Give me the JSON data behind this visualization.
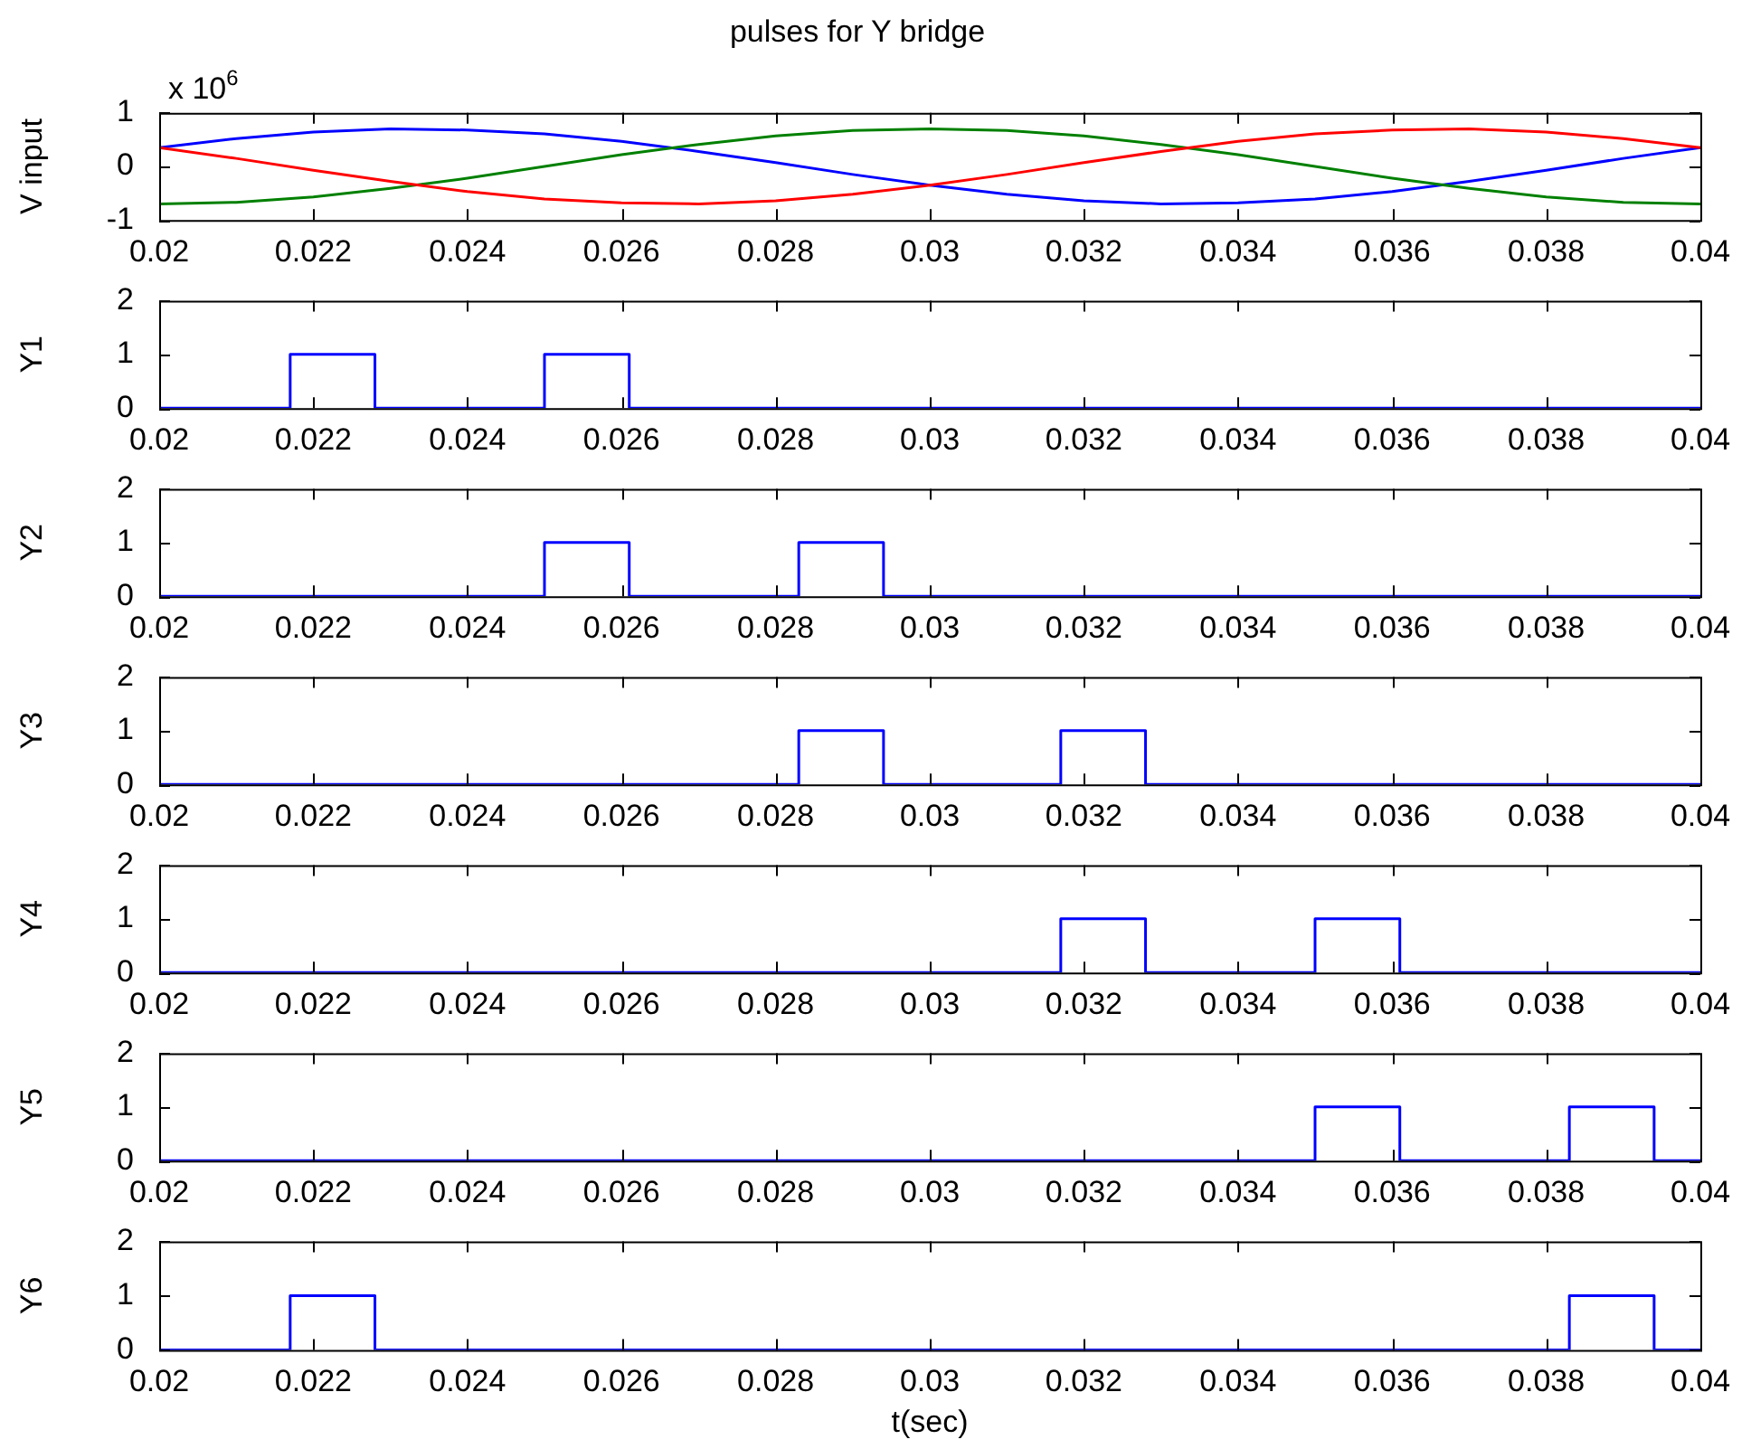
{
  "chart_data": [
    {
      "type": "line",
      "title": "pulses for Y bridge",
      "ylabel": "V input",
      "annotations": [
        "x 10$^{6}$"
      ],
      "xlim": [
        0.02,
        0.04
      ],
      "xticks": [
        0.02,
        0.022,
        0.024,
        0.026,
        0.028,
        0.03,
        0.032,
        0.034,
        0.036,
        0.038,
        0.04
      ],
      "ylim": [
        -1,
        1
      ],
      "yticks": [
        -1,
        0,
        1
      ],
      "grid": false,
      "legend": false,
      "x": [
        0.02,
        0.021,
        0.022,
        0.023,
        0.024,
        0.025,
        0.026,
        0.027,
        0.028,
        0.029,
        0.03,
        0.031,
        0.032,
        0.033,
        0.034,
        0.035,
        0.036,
        0.037,
        0.038,
        0.039,
        0.04
      ],
      "series": [
        {
          "color": "#ff0000",
          "values": [
            0.35,
            0.15,
            -0.07,
            -0.28,
            -0.47,
            -0.61,
            -0.68,
            -0.7,
            -0.64,
            -0.52,
            -0.35,
            -0.15,
            0.07,
            0.28,
            0.47,
            0.61,
            0.68,
            0.7,
            0.64,
            0.52,
            0.35
          ]
        },
        {
          "color": "#008000",
          "values": [
            -0.7,
            -0.67,
            -0.57,
            -0.41,
            -0.22,
            0,
            0.22,
            0.41,
            0.57,
            0.67,
            0.7,
            0.67,
            0.57,
            0.41,
            0.22,
            0,
            -0.22,
            -0.41,
            -0.57,
            -0.67,
            -0.7
          ]
        },
        {
          "color": "#0000ff",
          "values": [
            0.35,
            0.52,
            0.64,
            0.7,
            0.68,
            0.61,
            0.47,
            0.28,
            0.07,
            -0.15,
            -0.35,
            -0.52,
            -0.64,
            -0.7,
            -0.68,
            -0.61,
            -0.47,
            -0.28,
            -0.07,
            0.15,
            0.35
          ]
        }
      ]
    },
    {
      "type": "line",
      "ylabel": "Y1",
      "xlim": [
        0.02,
        0.04
      ],
      "xticks": [
        0.02,
        0.022,
        0.024,
        0.026,
        0.028,
        0.03,
        0.032,
        0.034,
        0.036,
        0.038,
        0.04
      ],
      "ylim": [
        0,
        2
      ],
      "yticks": [
        0,
        1,
        2
      ],
      "grid": false,
      "legend": false,
      "series": [
        {
          "color": "#0000ff",
          "x": [
            0.02,
            0.0217,
            0.0217,
            0.0228,
            0.0228,
            0.025,
            0.025,
            0.0261,
            0.0261,
            0.04
          ],
          "values": [
            0,
            0,
            1,
            1,
            0,
            0,
            1,
            1,
            0,
            0
          ]
        }
      ]
    },
    {
      "type": "line",
      "ylabel": "Y2",
      "xlim": [
        0.02,
        0.04
      ],
      "xticks": [
        0.02,
        0.022,
        0.024,
        0.026,
        0.028,
        0.03,
        0.032,
        0.034,
        0.036,
        0.038,
        0.04
      ],
      "ylim": [
        0,
        2
      ],
      "yticks": [
        0,
        1,
        2
      ],
      "grid": false,
      "legend": false,
      "series": [
        {
          "color": "#0000ff",
          "x": [
            0.02,
            0.025,
            0.025,
            0.0261,
            0.0261,
            0.0283,
            0.0283,
            0.0294,
            0.0294,
            0.04
          ],
          "values": [
            0,
            0,
            1,
            1,
            0,
            0,
            1,
            1,
            0,
            0
          ]
        }
      ]
    },
    {
      "type": "line",
      "ylabel": "Y3",
      "xlim": [
        0.02,
        0.04
      ],
      "xticks": [
        0.02,
        0.022,
        0.024,
        0.026,
        0.028,
        0.03,
        0.032,
        0.034,
        0.036,
        0.038,
        0.04
      ],
      "ylim": [
        0,
        2
      ],
      "yticks": [
        0,
        1,
        2
      ],
      "grid": false,
      "legend": false,
      "series": [
        {
          "color": "#0000ff",
          "x": [
            0.02,
            0.0283,
            0.0283,
            0.0294,
            0.0294,
            0.0317,
            0.0317,
            0.0328,
            0.0328,
            0.04
          ],
          "values": [
            0,
            0,
            1,
            1,
            0,
            0,
            1,
            1,
            0,
            0
          ]
        }
      ]
    },
    {
      "type": "line",
      "ylabel": "Y4",
      "xlim": [
        0.02,
        0.04
      ],
      "xticks": [
        0.02,
        0.022,
        0.024,
        0.026,
        0.028,
        0.03,
        0.032,
        0.034,
        0.036,
        0.038,
        0.04
      ],
      "ylim": [
        0,
        2
      ],
      "yticks": [
        0,
        1,
        2
      ],
      "grid": false,
      "legend": false,
      "series": [
        {
          "color": "#0000ff",
          "x": [
            0.02,
            0.0317,
            0.0317,
            0.0328,
            0.0328,
            0.035,
            0.035,
            0.0361,
            0.0361,
            0.04
          ],
          "values": [
            0,
            0,
            1,
            1,
            0,
            0,
            1,
            1,
            0,
            0
          ]
        }
      ]
    },
    {
      "type": "line",
      "ylabel": "Y5",
      "xlim": [
        0.02,
        0.04
      ],
      "xticks": [
        0.02,
        0.022,
        0.024,
        0.026,
        0.028,
        0.03,
        0.032,
        0.034,
        0.036,
        0.038,
        0.04
      ],
      "ylim": [
        0,
        2
      ],
      "yticks": [
        0,
        1,
        2
      ],
      "grid": false,
      "legend": false,
      "series": [
        {
          "color": "#0000ff",
          "x": [
            0.02,
            0.035,
            0.035,
            0.0361,
            0.0361,
            0.0383,
            0.0383,
            0.0394,
            0.0394,
            0.04
          ],
          "values": [
            0,
            0,
            1,
            1,
            0,
            0,
            1,
            1,
            0,
            0
          ]
        }
      ]
    },
    {
      "type": "line",
      "ylabel": "Y6",
      "xlabel": "t(sec)",
      "xlim": [
        0.02,
        0.04
      ],
      "xticks": [
        0.02,
        0.022,
        0.024,
        0.026,
        0.028,
        0.03,
        0.032,
        0.034,
        0.036,
        0.038,
        0.04
      ],
      "ylim": [
        0,
        2
      ],
      "yticks": [
        0,
        1,
        2
      ],
      "grid": false,
      "legend": false,
      "series": [
        {
          "color": "#0000ff",
          "x": [
            0.02,
            0.0217,
            0.0217,
            0.0228,
            0.0228,
            0.0383,
            0.0383,
            0.0394,
            0.0394,
            0.04
          ],
          "values": [
            0,
            0,
            1,
            1,
            0,
            0,
            1,
            1,
            0,
            0
          ]
        }
      ]
    }
  ]
}
